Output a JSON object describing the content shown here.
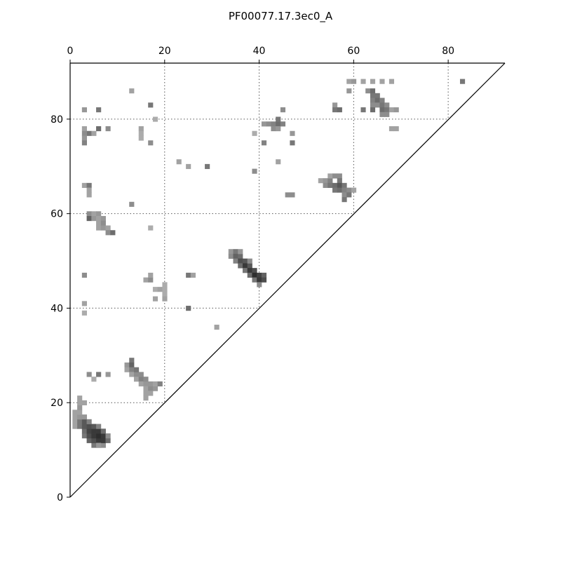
{
  "chart_data": {
    "type": "heatmap",
    "title": "PF00077.17.3ec0_A",
    "xlabel": "",
    "ylabel": "",
    "xlim": [
      0,
      92
    ],
    "ylim": [
      0,
      92
    ],
    "x_ticks": [
      0,
      20,
      40,
      60,
      80
    ],
    "y_ticks": [
      0,
      20,
      40,
      60,
      80
    ],
    "x_tick_labels": [
      "0",
      "20",
      "40",
      "60",
      "80"
    ],
    "y_tick_labels": [
      "0",
      "20",
      "40",
      "60",
      "80"
    ],
    "x_axis_position": "top",
    "grid": true,
    "triangle_mask": "upper-left",
    "colormap": "greys",
    "points": [
      [
        1,
        15,
        0.35
      ],
      [
        1,
        16,
        0.35
      ],
      [
        1,
        17,
        0.35
      ],
      [
        1,
        18,
        0.35
      ],
      [
        2,
        15,
        0.55
      ],
      [
        2,
        16,
        0.55
      ],
      [
        2,
        17,
        0.4
      ],
      [
        2,
        18,
        0.35
      ],
      [
        2,
        19,
        0.4
      ],
      [
        2,
        20,
        0.35
      ],
      [
        2,
        21,
        0.35
      ],
      [
        3,
        13,
        0.55
      ],
      [
        3,
        14,
        0.6
      ],
      [
        3,
        15,
        0.7
      ],
      [
        3,
        16,
        0.7
      ],
      [
        3,
        17,
        0.4
      ],
      [
        3,
        20,
        0.35
      ],
      [
        4,
        12,
        0.65
      ],
      [
        4,
        13,
        0.75
      ],
      [
        4,
        14,
        0.8
      ],
      [
        4,
        15,
        0.75
      ],
      [
        4,
        16,
        0.5
      ],
      [
        5,
        11,
        0.55
      ],
      [
        5,
        12,
        0.75
      ],
      [
        5,
        13,
        0.85
      ],
      [
        5,
        14,
        0.85
      ],
      [
        5,
        15,
        0.7
      ],
      [
        6,
        11,
        0.6
      ],
      [
        6,
        12,
        0.85
      ],
      [
        6,
        13,
        0.9
      ],
      [
        6,
        14,
        0.85
      ],
      [
        6,
        15,
        0.5
      ],
      [
        7,
        11,
        0.45
      ],
      [
        7,
        12,
        0.85
      ],
      [
        7,
        13,
        0.85
      ],
      [
        7,
        14,
        0.6
      ],
      [
        8,
        12,
        0.6
      ],
      [
        8,
        13,
        0.45
      ],
      [
        6,
        11,
        0.4
      ],
      [
        12,
        28,
        0.4
      ],
      [
        12,
        27,
        0.35
      ],
      [
        13,
        29,
        0.55
      ],
      [
        13,
        28,
        0.65
      ],
      [
        13,
        27,
        0.5
      ],
      [
        13,
        26,
        0.35
      ],
      [
        14,
        26,
        0.45
      ],
      [
        14,
        27,
        0.55
      ],
      [
        14,
        25,
        0.35
      ],
      [
        15,
        25,
        0.5
      ],
      [
        15,
        26,
        0.45
      ],
      [
        15,
        24,
        0.35
      ],
      [
        16,
        24,
        0.4
      ],
      [
        16,
        25,
        0.45
      ],
      [
        16,
        23,
        0.35
      ],
      [
        17,
        23,
        0.45
      ],
      [
        17,
        24,
        0.4
      ],
      [
        17,
        22,
        0.35
      ],
      [
        18,
        23,
        0.4
      ],
      [
        18,
        24,
        0.35
      ],
      [
        19,
        24,
        0.5
      ],
      [
        16,
        21,
        0.35
      ],
      [
        16,
        22,
        0.35
      ],
      [
        4,
        26,
        0.45
      ],
      [
        6,
        26,
        0.55
      ],
      [
        8,
        26,
        0.4
      ],
      [
        5,
        25,
        0.3
      ],
      [
        3,
        47,
        0.45
      ],
      [
        3,
        41,
        0.35
      ],
      [
        3,
        39,
        0.3
      ],
      [
        16,
        46,
        0.35
      ],
      [
        17,
        46,
        0.45
      ],
      [
        17,
        47,
        0.35
      ],
      [
        18,
        42,
        0.35
      ],
      [
        18,
        44,
        0.3
      ],
      [
        19,
        44,
        0.35
      ],
      [
        20,
        45,
        0.3
      ],
      [
        20,
        44,
        0.3
      ],
      [
        20,
        43,
        0.3
      ],
      [
        20,
        42,
        0.35
      ],
      [
        25,
        47,
        0.55
      ],
      [
        26,
        47,
        0.35
      ],
      [
        25,
        40,
        0.6
      ],
      [
        31,
        36,
        0.35
      ],
      [
        34,
        52,
        0.4
      ],
      [
        34,
        51,
        0.45
      ],
      [
        35,
        52,
        0.55
      ],
      [
        35,
        51,
        0.65
      ],
      [
        35,
        50,
        0.5
      ],
      [
        36,
        51,
        0.6
      ],
      [
        36,
        50,
        0.75
      ],
      [
        36,
        49,
        0.6
      ],
      [
        37,
        50,
        0.7
      ],
      [
        37,
        49,
        0.85
      ],
      [
        37,
        48,
        0.55
      ],
      [
        38,
        49,
        0.7
      ],
      [
        38,
        48,
        0.85
      ],
      [
        38,
        47,
        0.6
      ],
      [
        39,
        48,
        0.75
      ],
      [
        39,
        47,
        0.9
      ],
      [
        39,
        46,
        0.55
      ],
      [
        40,
        47,
        0.8
      ],
      [
        40,
        46,
        0.85
      ],
      [
        40,
        45,
        0.45
      ],
      [
        41,
        47,
        0.65
      ],
      [
        41,
        46,
        0.75
      ],
      [
        36,
        52,
        0.4
      ],
      [
        38,
        50,
        0.45
      ],
      [
        4,
        60,
        0.45
      ],
      [
        5,
        60,
        0.35
      ],
      [
        6,
        60,
        0.4
      ],
      [
        4,
        59,
        0.65
      ],
      [
        5,
        59,
        0.4
      ],
      [
        6,
        59,
        0.35
      ],
      [
        7,
        59,
        0.4
      ],
      [
        6,
        58,
        0.35
      ],
      [
        7,
        58,
        0.45
      ],
      [
        6,
        57,
        0.35
      ],
      [
        7,
        57,
        0.4
      ],
      [
        8,
        57,
        0.35
      ],
      [
        8,
        56,
        0.45
      ],
      [
        9,
        56,
        0.6
      ],
      [
        3,
        66,
        0.35
      ],
      [
        4,
        66,
        0.55
      ],
      [
        4,
        65,
        0.35
      ],
      [
        4,
        64,
        0.35
      ],
      [
        13,
        62,
        0.45
      ],
      [
        17,
        57,
        0.3
      ],
      [
        23,
        71,
        0.35
      ],
      [
        25,
        70,
        0.35
      ],
      [
        29,
        70,
        0.55
      ],
      [
        39,
        69,
        0.45
      ],
      [
        53,
        67,
        0.35
      ],
      [
        54,
        67,
        0.4
      ],
      [
        54,
        66,
        0.45
      ],
      [
        55,
        67,
        0.5
      ],
      [
        55,
        66,
        0.55
      ],
      [
        55,
        68,
        0.35
      ],
      [
        56,
        68,
        0.45
      ],
      [
        56,
        66,
        0.6
      ],
      [
        56,
        65,
        0.55
      ],
      [
        57,
        68,
        0.45
      ],
      [
        57,
        67,
        0.55
      ],
      [
        57,
        66,
        0.7
      ],
      [
        57,
        65,
        0.6
      ],
      [
        58,
        66,
        0.55
      ],
      [
        58,
        65,
        0.5
      ],
      [
        58,
        64,
        0.45
      ],
      [
        59,
        65,
        0.45
      ],
      [
        59,
        64,
        0.55
      ],
      [
        58,
        63,
        0.55
      ],
      [
        60,
        65,
        0.35
      ],
      [
        46,
        64,
        0.45
      ],
      [
        47,
        64,
        0.45
      ],
      [
        3,
        82,
        0.4
      ],
      [
        6,
        82,
        0.55
      ],
      [
        3,
        78,
        0.35
      ],
      [
        4,
        77,
        0.55
      ],
      [
        3,
        77,
        0.45
      ],
      [
        5,
        77,
        0.35
      ],
      [
        3,
        76,
        0.4
      ],
      [
        3,
        75,
        0.5
      ],
      [
        6,
        78,
        0.6
      ],
      [
        8,
        78,
        0.45
      ],
      [
        13,
        86,
        0.35
      ],
      [
        17,
        83,
        0.55
      ],
      [
        18,
        80,
        0.3
      ],
      [
        15,
        78,
        0.35
      ],
      [
        15,
        77,
        0.3
      ],
      [
        15,
        76,
        0.3
      ],
      [
        17,
        75,
        0.45
      ],
      [
        39,
        77,
        0.3
      ],
      [
        41,
        75,
        0.5
      ],
      [
        41,
        79,
        0.4
      ],
      [
        42,
        79,
        0.45
      ],
      [
        43,
        79,
        0.5
      ],
      [
        44,
        79,
        0.6
      ],
      [
        44,
        80,
        0.55
      ],
      [
        45,
        79,
        0.5
      ],
      [
        43,
        78,
        0.45
      ],
      [
        44,
        78,
        0.4
      ],
      [
        45,
        82,
        0.45
      ],
      [
        47,
        77,
        0.4
      ],
      [
        47,
        75,
        0.55
      ],
      [
        44,
        71,
        0.35
      ],
      [
        56,
        83,
        0.4
      ],
      [
        56,
        82,
        0.55
      ],
      [
        57,
        82,
        0.6
      ],
      [
        59,
        88,
        0.35
      ],
      [
        60,
        88,
        0.4
      ],
      [
        59,
        86,
        0.4
      ],
      [
        62,
        88,
        0.35
      ],
      [
        64,
        88,
        0.35
      ],
      [
        63,
        86,
        0.45
      ],
      [
        64,
        86,
        0.6
      ],
      [
        64,
        85,
        0.55
      ],
      [
        64,
        84,
        0.5
      ],
      [
        64,
        83,
        0.45
      ],
      [
        64,
        82,
        0.6
      ],
      [
        65,
        85,
        0.55
      ],
      [
        65,
        84,
        0.6
      ],
      [
        65,
        83,
        0.45
      ],
      [
        66,
        84,
        0.5
      ],
      [
        66,
        83,
        0.55
      ],
      [
        66,
        82,
        0.6
      ],
      [
        66,
        81,
        0.45
      ],
      [
        67,
        83,
        0.45
      ],
      [
        67,
        82,
        0.55
      ],
      [
        67,
        81,
        0.45
      ],
      [
        68,
        82,
        0.35
      ],
      [
        69,
        82,
        0.4
      ],
      [
        68,
        78,
        0.35
      ],
      [
        69,
        78,
        0.35
      ],
      [
        66,
        88,
        0.35
      ],
      [
        68,
        88,
        0.35
      ],
      [
        62,
        82,
        0.55
      ],
      [
        83,
        88,
        0.55
      ]
    ]
  }
}
